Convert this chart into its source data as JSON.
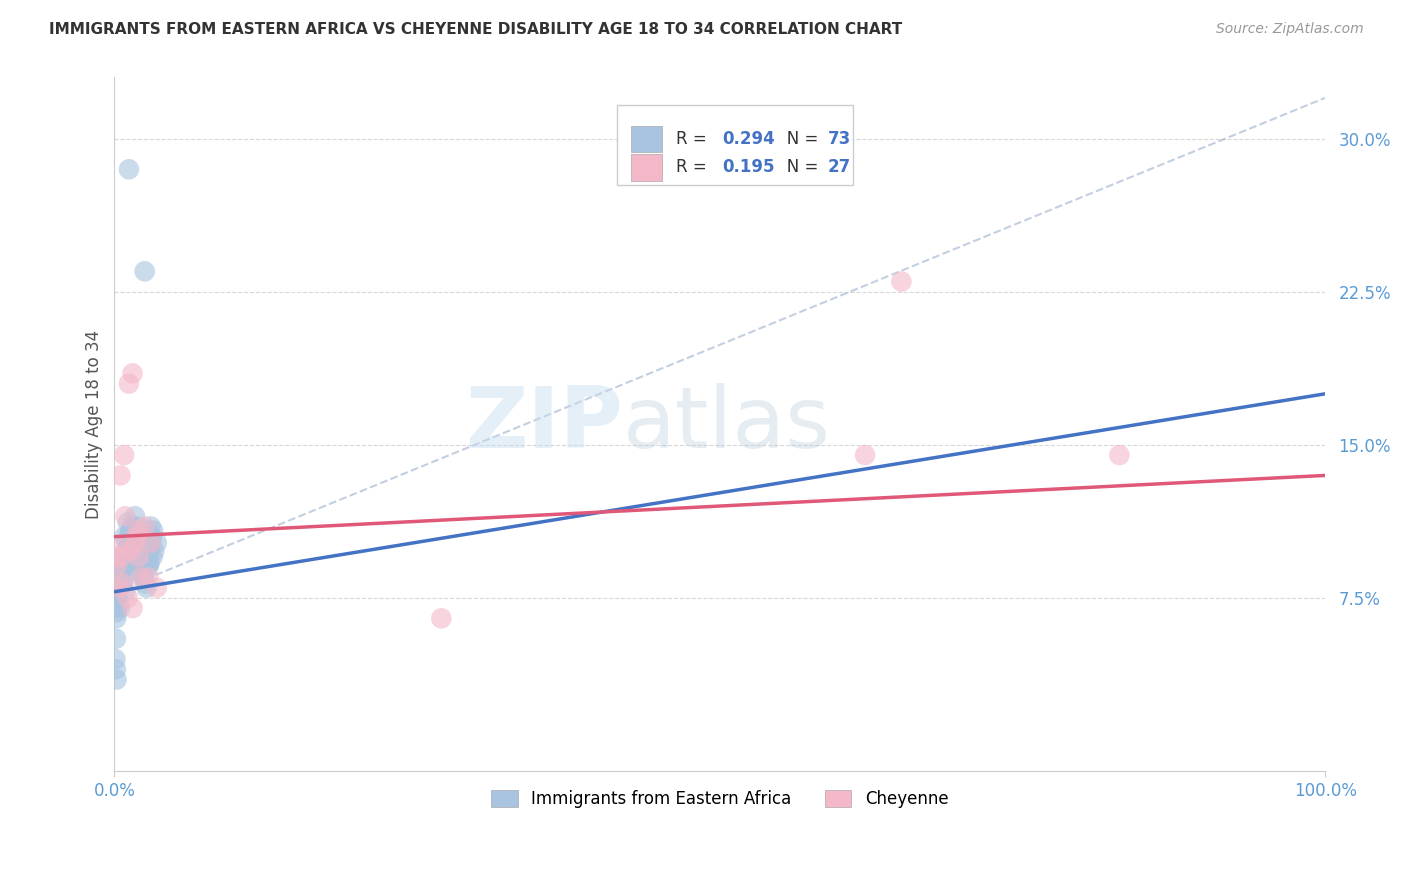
{
  "title": "IMMIGRANTS FROM EASTERN AFRICA VS CHEYENNE DISABILITY AGE 18 TO 34 CORRELATION CHART",
  "source": "Source: ZipAtlas.com",
  "ylabel": "Disability Age 18 to 34",
  "xlim": [
    0,
    100
  ],
  "ylim": [
    -1,
    33
  ],
  "yticks": [
    7.5,
    15.0,
    22.5,
    30.0
  ],
  "xticks": [
    0,
    100
  ],
  "legend_labels": [
    "Immigrants from Eastern Africa",
    "Cheyenne"
  ],
  "R_blue": "0.294",
  "N_blue": "73",
  "R_pink": "0.195",
  "N_pink": "27",
  "blue_color": "#a8c4e0",
  "pink_color": "#f4b8c8",
  "blue_line_color": "#4472c4",
  "pink_line_color": "#e05878",
  "accent_color": "#4472c4",
  "blue_scatter_x": [
    1.2,
    2.5,
    0.3,
    0.4,
    0.5,
    0.6,
    0.7,
    0.8,
    0.9,
    1.0,
    1.1,
    1.3,
    1.4,
    1.5,
    1.6,
    1.7,
    1.8,
    1.9,
    2.0,
    2.1,
    2.2,
    2.3,
    2.4,
    2.6,
    2.7,
    2.8,
    2.9,
    3.0,
    3.1,
    3.2,
    3.3,
    3.5,
    0.15,
    0.2,
    0.25,
    0.35,
    0.45,
    0.55,
    0.65,
    0.75,
    0.85,
    0.95,
    1.05,
    1.15,
    1.25,
    1.35,
    1.45,
    1.55,
    1.65,
    1.75,
    1.85,
    1.95,
    2.05,
    2.15,
    2.25,
    2.35,
    2.45,
    2.55,
    2.65,
    2.75,
    2.85,
    2.95,
    3.05,
    3.15,
    0.1,
    0.1,
    0.1,
    0.2,
    0.15,
    0.12,
    0.08,
    0.12,
    0.18
  ],
  "blue_scatter_y": [
    28.5,
    23.5,
    8.8,
    9.2,
    8.5,
    9.5,
    8.2,
    10.5,
    7.8,
    9.0,
    11.2,
    10.8,
    9.5,
    10.2,
    8.8,
    11.5,
    11.0,
    9.8,
    10.5,
    10.2,
    9.8,
    10.0,
    10.5,
    9.5,
    10.8,
    9.0,
    9.2,
    11.0,
    10.5,
    10.8,
    9.8,
    10.2,
    8.5,
    8.0,
    7.5,
    7.2,
    7.0,
    9.0,
    8.8,
    8.5,
    9.2,
    9.8,
    10.2,
    10.5,
    9.5,
    9.0,
    11.0,
    10.8,
    10.2,
    9.8,
    9.5,
    9.2,
    8.8,
    9.0,
    9.5,
    10.0,
    8.5,
    8.2,
    8.0,
    9.5,
    9.2,
    9.8,
    10.2,
    9.5,
    7.5,
    7.2,
    7.0,
    6.8,
    6.5,
    5.5,
    4.5,
    4.0,
    3.5
  ],
  "pink_scatter_x": [
    0.5,
    0.8,
    1.2,
    1.5,
    1.8,
    2.0,
    2.5,
    3.0,
    0.3,
    0.6,
    0.9,
    1.3,
    1.7,
    2.2,
    0.4,
    0.7,
    1.1,
    1.5,
    2.0,
    27.0,
    62.0,
    65.0,
    83.0,
    3.5,
    2.8,
    0.2,
    0.15
  ],
  "pink_scatter_y": [
    13.5,
    14.5,
    18.0,
    18.5,
    10.5,
    10.8,
    11.0,
    10.2,
    10.0,
    9.5,
    11.5,
    9.8,
    10.2,
    8.5,
    8.0,
    8.2,
    7.5,
    7.0,
    9.5,
    6.5,
    14.5,
    23.0,
    14.5,
    8.0,
    8.5,
    9.5,
    9.0
  ],
  "blue_trend_x": [
    0,
    100
  ],
  "blue_trend_y": [
    7.8,
    17.5
  ],
  "pink_trend_x": [
    0,
    100
  ],
  "pink_trend_y": [
    10.5,
    13.5
  ],
  "dash_line_x": [
    0,
    100
  ],
  "dash_line_y": [
    7.8,
    32.0
  ],
  "watermark_zip": "ZIP",
  "watermark_atlas": "atlas",
  "background_color": "#ffffff",
  "grid_color": "#d8d8d8",
  "title_color": "#333333",
  "axis_color": "#cccccc",
  "tick_color": "#5b9bd5",
  "ylabel_color": "#555555"
}
